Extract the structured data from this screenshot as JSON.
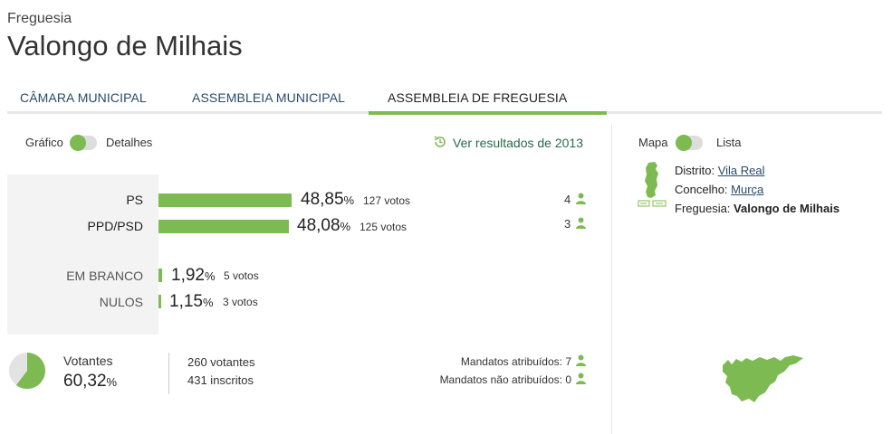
{
  "header": {
    "kicker": "Freguesia",
    "title": "Valongo de Milhais"
  },
  "tabs": [
    {
      "label": "CÂMARA MUNICIPAL"
    },
    {
      "label": "ASSEMBLEIA MUNICIPAL"
    },
    {
      "label": "ASSEMBLEIA DE FREGUESIA",
      "active": true
    }
  ],
  "view_toggle": {
    "left_label": "Gráfico",
    "right_label": "Detalhes",
    "state": "Gráfico"
  },
  "history_link": "Ver resultados de 2013",
  "results": [
    {
      "party": "PS",
      "pct": "48,85",
      "votes": "127 votos",
      "seats": "4"
    },
    {
      "party": "PPD/PSD",
      "pct": "48,08",
      "votes": "125 votos",
      "seats": "3"
    }
  ],
  "others": [
    {
      "label": "EM BRANCO",
      "pct": "1,92",
      "votes": "5 votos"
    },
    {
      "label": "NULOS",
      "pct": "1,15",
      "votes": "3 votos"
    }
  ],
  "pct_unit": "%",
  "turnout": {
    "label": "Votantes",
    "pct": "60,32",
    "fraction": 0.6032,
    "votantes": "260 votantes",
    "inscritos": "431 inscritos",
    "mandatos_atribuidos": "Mandatos atribuídos: 7",
    "mandatos_nao_atribuidos": "Mandatos não atribuídos: 0"
  },
  "map_toggle": {
    "left_label": "Mapa",
    "right_label": "Lista",
    "state": "Mapa"
  },
  "location": {
    "distrito_label": "Distrito:",
    "distrito": "Vila Real",
    "concelho_label": "Concelho:",
    "concelho": "Murça",
    "freguesia_label": "Freguesia:",
    "freguesia": "Valongo de Milhais"
  },
  "colors": {
    "accent": "#7dbb52",
    "link": "#2a4a6a",
    "panel": "#f3f3f3"
  },
  "icons": [
    "history-icon",
    "person-icon",
    "portugal-map-icon",
    "parish-map-icon",
    "pie-icon"
  ]
}
